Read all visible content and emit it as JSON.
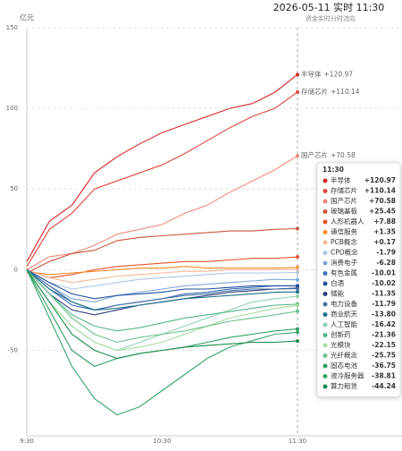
{
  "chart_data": {
    "type": "line",
    "title": "2026-05-11 实时 11:30",
    "subtitle": "资金实时分时流向",
    "y_label": "亿元",
    "categories": [
      "9:30",
      null,
      null,
      null,
      null,
      null,
      "10:30",
      null,
      null,
      null,
      null,
      null,
      "11:30"
    ],
    "ylim": [
      -103,
      150
    ],
    "yticks": [
      -50,
      0,
      50,
      100,
      150
    ],
    "grid": true,
    "series": [
      {
        "name": "半导体",
        "color": "#d62728",
        "end_label": "+120.97",
        "values": [
          5,
          30,
          40,
          60,
          70,
          78,
          85,
          90,
          95,
          100,
          103,
          110,
          120.97
        ]
      },
      {
        "name": "存储芯片",
        "color": "#e0473e",
        "end_label": "+110.14",
        "values": [
          2,
          25,
          35,
          50,
          55,
          60,
          65,
          72,
          80,
          88,
          95,
          100,
          110.14
        ]
      },
      {
        "name": "国产芯片",
        "color": "#f08a7a",
        "end_label": "+70.58",
        "values": [
          0,
          8,
          10,
          15,
          22,
          25,
          28,
          35,
          40,
          48,
          55,
          62,
          70.58
        ]
      },
      {
        "name": "玻璃基板",
        "color": "#c8553d",
        "end_label": "+25.45",
        "values": [
          -2,
          5,
          10,
          12,
          18,
          20,
          21,
          22,
          23,
          24,
          24,
          25,
          25.45
        ]
      },
      {
        "name": "人形机器人",
        "color": "#e8542c",
        "end_label": "+7.88",
        "values": [
          0,
          -5,
          -3,
          0,
          2,
          3,
          4,
          5,
          5,
          6,
          7,
          7,
          7.88
        ]
      },
      {
        "name": "通信服务",
        "color": "#f28c28",
        "end_label": "+1.35",
        "values": [
          -1,
          -3,
          -2,
          -1,
          0,
          1,
          1,
          2,
          1,
          1,
          1,
          1,
          1.35
        ]
      },
      {
        "name": "PCB概念",
        "color": "#f5b895",
        "end_label": "+0.17",
        "values": [
          0,
          -5,
          -8,
          -6,
          -4,
          -3,
          -2,
          -1,
          -1,
          0,
          0,
          0,
          0.17
        ]
      },
      {
        "name": "CPO概念",
        "color": "#aec7e8",
        "end_label": "-1.79",
        "values": [
          0,
          -8,
          -12,
          -10,
          -8,
          -6,
          -5,
          -4,
          -3,
          -2,
          -2,
          -2,
          -1.79
        ]
      },
      {
        "name": "消费电子",
        "color": "#7da7d9",
        "end_label": "-6.28",
        "values": [
          0,
          -10,
          -18,
          -20,
          -16,
          -14,
          -12,
          -10,
          -9,
          -8,
          -7,
          -6,
          -6.28
        ]
      },
      {
        "name": "有色金属",
        "color": "#3b6fb6",
        "end_label": "-10.01",
        "values": [
          0,
          -12,
          -22,
          -25,
          -22,
          -20,
          -18,
          -15,
          -14,
          -12,
          -11,
          -10,
          -10.01
        ]
      },
      {
        "name": "白酒",
        "color": "#1f4e9c",
        "end_label": "-10.02",
        "values": [
          0,
          -8,
          -15,
          -18,
          -16,
          -15,
          -14,
          -12,
          -12,
          -11,
          -10,
          -10,
          -10.02
        ]
      },
      {
        "name": "储能",
        "color": "#2c3e7a",
        "end_label": "-11.35",
        "values": [
          0,
          -15,
          -25,
          -28,
          -25,
          -22,
          -20,
          -18,
          -16,
          -14,
          -13,
          -12,
          -11.35
        ]
      },
      {
        "name": "电力设备",
        "color": "#4a6fa5",
        "end_label": "-11.79",
        "values": [
          0,
          -10,
          -20,
          -25,
          -22,
          -20,
          -18,
          -16,
          -15,
          -13,
          -12,
          -12,
          -11.79
        ]
      },
      {
        "name": "商业航天",
        "color": "#1b6f8a",
        "end_label": "-13.80",
        "values": [
          0,
          -12,
          -20,
          -25,
          -24,
          -22,
          -20,
          -18,
          -17,
          -16,
          -15,
          -14,
          -13.8
        ]
      },
      {
        "name": "人工智能",
        "color": "#8fd1b0",
        "end_label": "-16.42",
        "values": [
          0,
          -20,
          -35,
          -45,
          -50,
          -45,
          -40,
          -35,
          -30,
          -25,
          -20,
          -18,
          -16.42
        ]
      },
      {
        "name": "创新药",
        "color": "#52b788",
        "end_label": "-21.36",
        "values": [
          0,
          -15,
          -28,
          -35,
          -38,
          -36,
          -33,
          -30,
          -28,
          -26,
          -24,
          -22,
          -21.36
        ]
      },
      {
        "name": "光模块",
        "color": "#a8dda0",
        "end_label": "-22.15",
        "values": [
          0,
          -20,
          -35,
          -45,
          -50,
          -48,
          -45,
          -40,
          -35,
          -30,
          -27,
          -24,
          -22.15
        ]
      },
      {
        "name": "光纤概念",
        "color": "#6cc08b",
        "end_label": "-25.75",
        "values": [
          0,
          -15,
          -30,
          -40,
          -45,
          -42,
          -40,
          -38,
          -35,
          -32,
          -30,
          -28,
          -25.75
        ]
      },
      {
        "name": "固态电池",
        "color": "#2e9e5e",
        "end_label": "-36.75",
        "values": [
          0,
          -25,
          -50,
          -60,
          -55,
          -52,
          -50,
          -48,
          -45,
          -42,
          -40,
          -38,
          -36.75
        ]
      },
      {
        "name": "液冷服务器",
        "color": "#3aa66a",
        "end_label": "-38.81",
        "values": [
          0,
          -30,
          -60,
          -80,
          -90,
          -85,
          -75,
          -65,
          -55,
          -48,
          -44,
          -40,
          -38.81
        ]
      },
      {
        "name": "算力租赁",
        "color": "#1a8a4a",
        "end_label": "-44.24",
        "values": [
          0,
          -20,
          -40,
          -50,
          -55,
          -52,
          -50,
          -48,
          -47,
          -46,
          -45,
          -45,
          -44.24
        ]
      }
    ]
  }
}
